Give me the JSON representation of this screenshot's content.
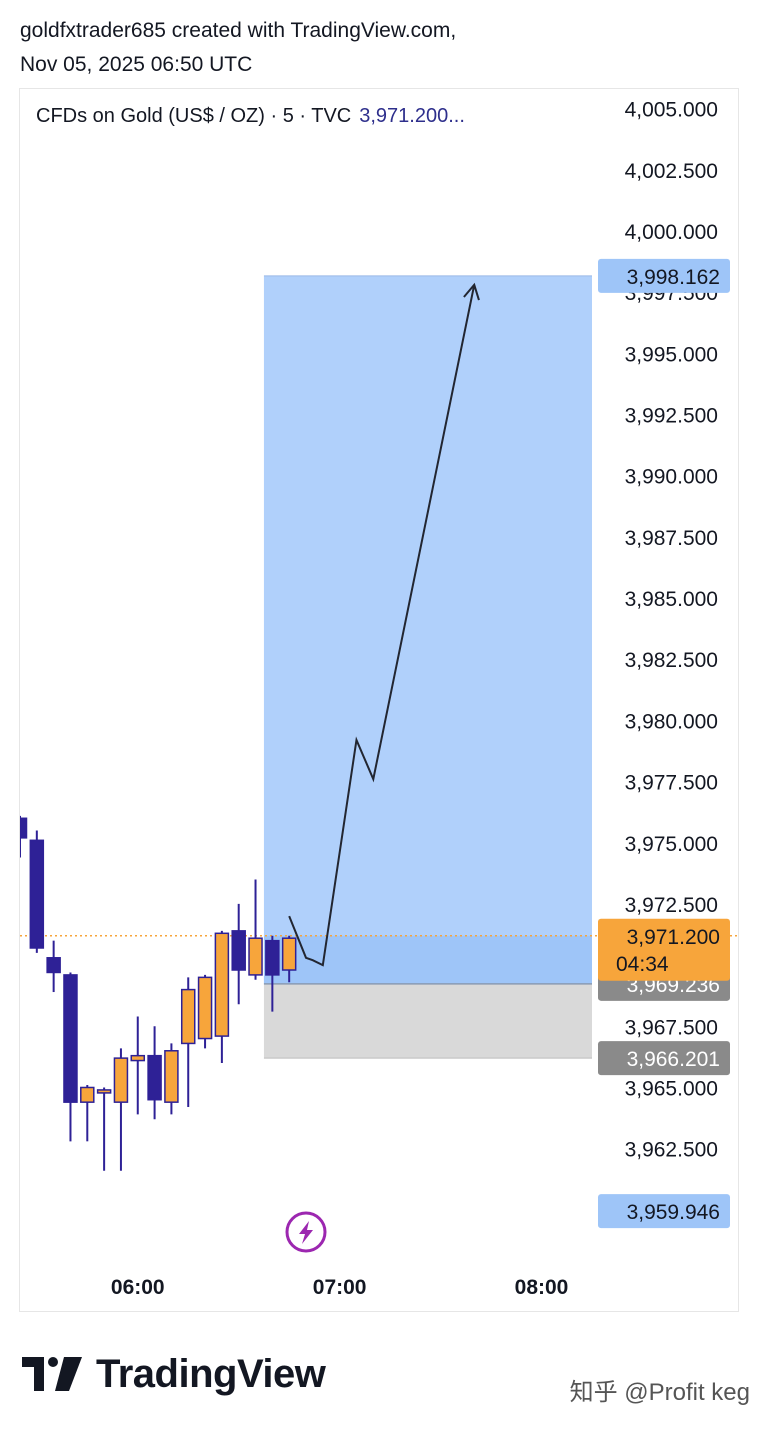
{
  "header": {
    "line1": "goldfxtrader685 created with TradingView.com,",
    "line2": "Nov 05, 2025 06:50 UTC"
  },
  "symbol": {
    "title": "CFDs on Gold (US$ / OZ) · 5 · TVC",
    "last_price": "3,971.200..."
  },
  "colors": {
    "bull": "#f7a53b",
    "bear": "#2e2196",
    "wick": "#2e2196",
    "profit_zone": "#b0d0fb",
    "profit_zone_active": "#9ec5f8",
    "loss_zone": "#d9d9d9",
    "last_price_tag": "#f7a53b",
    "grey_tag": "#8a8a8a",
    "blue_tag": "#9ec5f8"
  },
  "footer": {
    "brand": "TradingView",
    "watermark": "知乎 @Profit keg"
  },
  "chart_data": {
    "type": "candlestick",
    "title": "CFDs on Gold (US$ / OZ) · 5 · TVC",
    "y_ticks": [
      "4,005.000",
      "4,002.500",
      "4,000.000",
      "3,997.500",
      "3,995.000",
      "3,992.500",
      "3,990.000",
      "3,987.500",
      "3,985.000",
      "3,982.500",
      "3,980.000",
      "3,977.500",
      "3,975.000",
      "3,972.500",
      "3,967.500",
      "3,965.000",
      "3,962.500"
    ],
    "y_tick_values": [
      4005,
      4002.5,
      4000,
      3997.5,
      3995,
      3992.5,
      3990,
      3987.5,
      3985,
      3982.5,
      3980,
      3977.5,
      3975,
      3972.5,
      3967.5,
      3965,
      3962.5
    ],
    "ylim": [
      3958.4,
      4005.8
    ],
    "x_ticks": [
      "06:00",
      "07:00",
      "08:00"
    ],
    "x_tick_times": [
      "06:00",
      "07:00",
      "08:00"
    ],
    "xlim": [
      "05:25",
      "08:15"
    ],
    "candles": [
      {
        "t": "05:25",
        "o": 3976.0,
        "h": 3976.1,
        "l": 3974.4,
        "c": 3975.2
      },
      {
        "t": "05:30",
        "o": 3975.1,
        "h": 3975.5,
        "l": 3970.5,
        "c": 3970.7
      },
      {
        "t": "05:35",
        "o": 3970.3,
        "h": 3971.0,
        "l": 3968.9,
        "c": 3969.7
      },
      {
        "t": "05:40",
        "o": 3969.6,
        "h": 3969.7,
        "l": 3962.8,
        "c": 3964.4
      },
      {
        "t": "05:45",
        "o": 3964.4,
        "h": 3965.1,
        "l": 3962.8,
        "c": 3965.0
      },
      {
        "t": "05:50",
        "o": 3964.8,
        "h": 3965.0,
        "l": 3961.6,
        "c": 3964.9
      },
      {
        "t": "05:55",
        "o": 3964.4,
        "h": 3966.6,
        "l": 3961.6,
        "c": 3966.2
      },
      {
        "t": "06:00",
        "o": 3966.1,
        "h": 3967.9,
        "l": 3963.9,
        "c": 3966.3
      },
      {
        "t": "06:05",
        "o": 3966.3,
        "h": 3967.5,
        "l": 3963.7,
        "c": 3964.5
      },
      {
        "t": "06:10",
        "o": 3964.4,
        "h": 3966.8,
        "l": 3963.9,
        "c": 3966.5
      },
      {
        "t": "06:15",
        "o": 3966.8,
        "h": 3969.5,
        "l": 3964.2,
        "c": 3969.0
      },
      {
        "t": "06:20",
        "o": 3967.0,
        "h": 3969.6,
        "l": 3966.6,
        "c": 3969.5
      },
      {
        "t": "06:25",
        "o": 3967.1,
        "h": 3971.4,
        "l": 3966.0,
        "c": 3971.3
      },
      {
        "t": "06:30",
        "o": 3971.4,
        "h": 3972.5,
        "l": 3968.4,
        "c": 3969.8
      },
      {
        "t": "06:35",
        "o": 3969.6,
        "h": 3973.5,
        "l": 3969.4,
        "c": 3971.1
      },
      {
        "t": "06:40",
        "o": 3971.0,
        "h": 3971.2,
        "l": 3968.1,
        "c": 3969.6
      },
      {
        "t": "06:45",
        "o": 3969.8,
        "h": 3971.2,
        "l": 3969.3,
        "c": 3971.1
      }
    ],
    "position": {
      "start": "06:40",
      "end": "08:15",
      "entry": 3969.236,
      "target": 3998.162,
      "stop": 3966.201
    },
    "projection_path": [
      {
        "t": "06:45",
        "p": 3972.0
      },
      {
        "t": "06:50",
        "p": 3970.3
      },
      {
        "t": "06:52",
        "p": 3970.2
      },
      {
        "t": "06:55",
        "p": 3970.0
      },
      {
        "t": "07:05",
        "p": 3979.2
      },
      {
        "t": "07:10",
        "p": 3977.6
      },
      {
        "t": "07:40",
        "p": 3997.8
      }
    ],
    "last_price": {
      "value": 3971.2,
      "label": "3,971.200",
      "countdown": "04:34"
    },
    "price_tags": [
      {
        "value": 3998.162,
        "label": "3,998.162",
        "style": "blue"
      },
      {
        "value": 3969.236,
        "label": "3,969.236",
        "style": "grey"
      },
      {
        "value": 3966.201,
        "label": "3,966.201",
        "style": "grey"
      },
      {
        "value": 3959.946,
        "label": "3,959.946",
        "style": "blue"
      }
    ],
    "marker_icon": {
      "name": "lightning-icon",
      "t": "06:50"
    },
    "grid": false
  }
}
